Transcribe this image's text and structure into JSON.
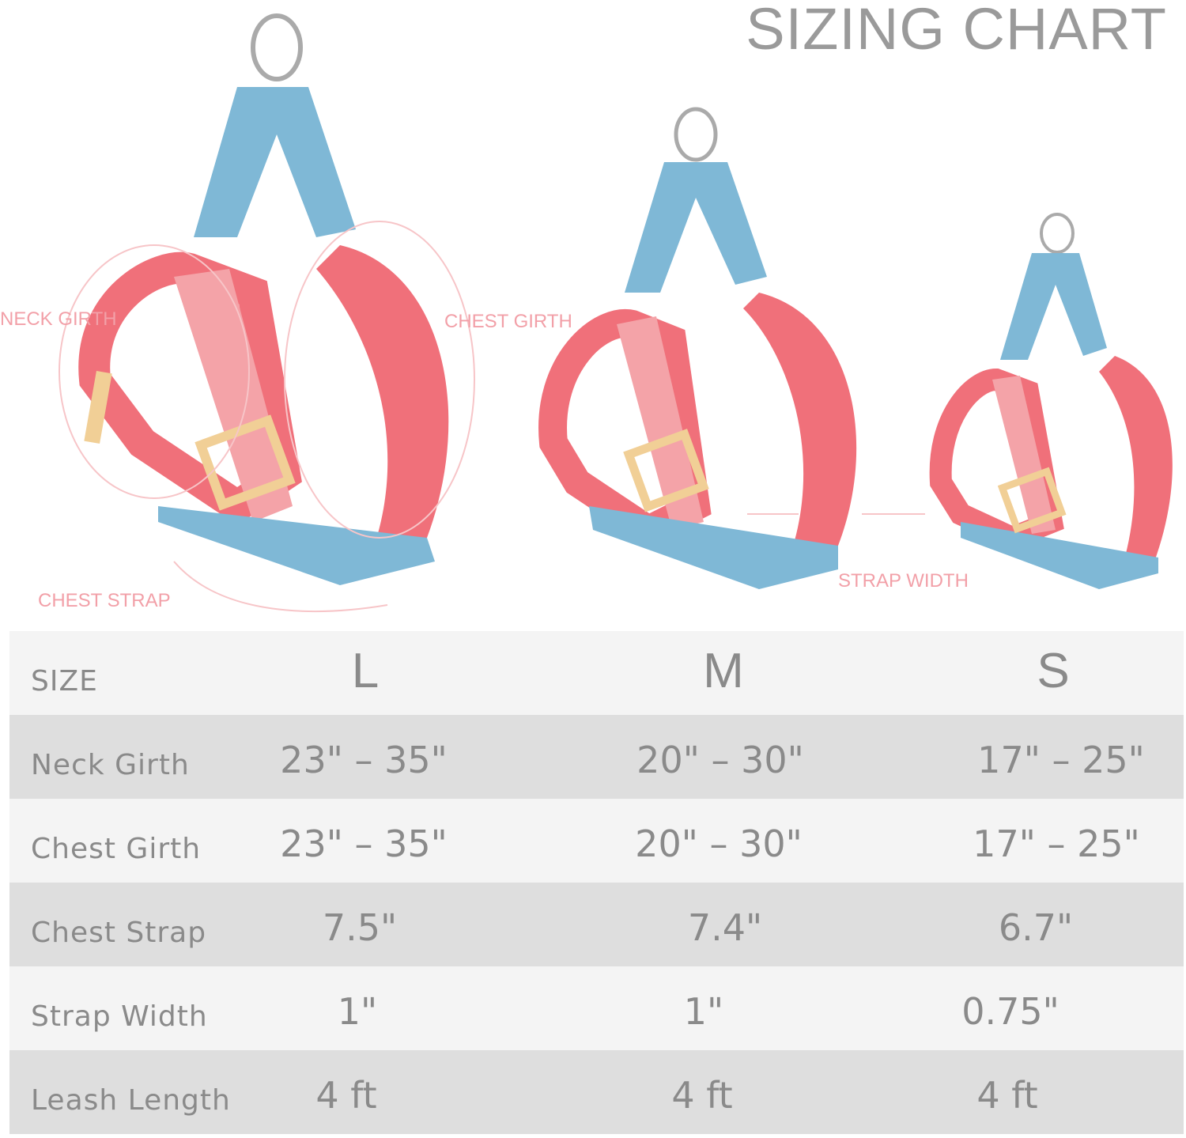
{
  "title": "SIZING CHART",
  "annotations": {
    "neck_girth": "NECK GIRTH",
    "chest_girth": "CHEST GIRTH",
    "chest_strap": "CHEST STRAP",
    "strap_width": "STRAP WIDTH"
  },
  "colors": {
    "pink": "#f0707a",
    "blue": "#7fb8d6",
    "label_pink": "#f2a0a8",
    "buckle": "#f1cf96"
  },
  "table": {
    "header": {
      "label": "SIZE",
      "sizes": [
        "L",
        "M",
        "S"
      ]
    },
    "rows": [
      {
        "label": "Neck Girth",
        "values": [
          "23\" – 35\"",
          "20\" – 30\"",
          "17\" – 25\""
        ]
      },
      {
        "label": "Chest Girth",
        "values": [
          "23\" – 35\"",
          "20\" – 30\"",
          "17\" – 25\""
        ]
      },
      {
        "label": "Chest Strap",
        "values": [
          "7.5\"",
          "7.4\"",
          "6.7\""
        ]
      },
      {
        "label": "Strap Width",
        "values": [
          "1\"",
          "1\"",
          "0.75\""
        ]
      },
      {
        "label": "Leash Length",
        "values": [
          "4 ft",
          "4 ft",
          "4 ft"
        ]
      }
    ]
  }
}
